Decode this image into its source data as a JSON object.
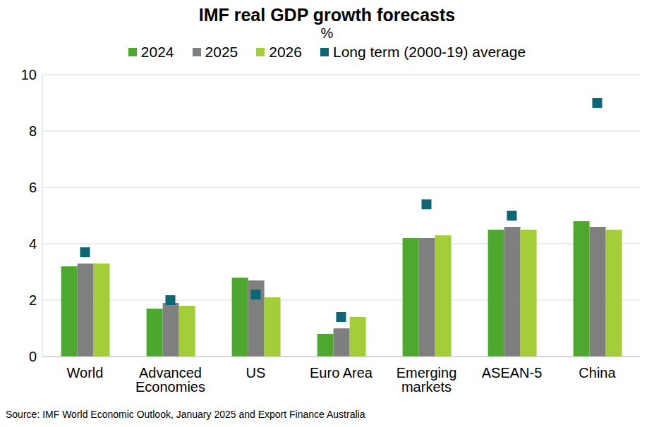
{
  "chart_data": {
    "type": "bar",
    "title": "IMF real GDP growth forecasts",
    "subtitle": "%",
    "annotations": [
      "Source: IMF World Economic Outlook, January 2025 and Export Finance Australia"
    ],
    "categories": [
      "World",
      "Advanced Economies",
      "US",
      "Euro Area",
      "Emerging markets",
      "ASEAN-5",
      "China"
    ],
    "series": [
      {
        "name": "2024",
        "type": "bar",
        "color": "#4ea72e",
        "values": [
          3.2,
          1.7,
          2.8,
          0.8,
          4.2,
          4.5,
          4.8
        ]
      },
      {
        "name": "2025",
        "type": "bar",
        "color": "#7f7f7f",
        "values": [
          3.3,
          1.9,
          2.7,
          1.0,
          4.2,
          4.6,
          4.6
        ]
      },
      {
        "name": "2026",
        "type": "bar",
        "color": "#a3cd39",
        "values": [
          3.3,
          1.8,
          2.1,
          1.4,
          4.3,
          4.5,
          4.5
        ]
      },
      {
        "name": "Long term (2000-19) average",
        "type": "scatter",
        "marker": "square",
        "color": "#0e6575",
        "values": [
          3.7,
          2.0,
          2.2,
          1.4,
          5.4,
          5.0,
          9.0
        ]
      }
    ],
    "ylim": [
      0,
      10
    ],
    "yticks": [
      0,
      2,
      4,
      6,
      8,
      10
    ],
    "grid": true,
    "legend": "top"
  }
}
